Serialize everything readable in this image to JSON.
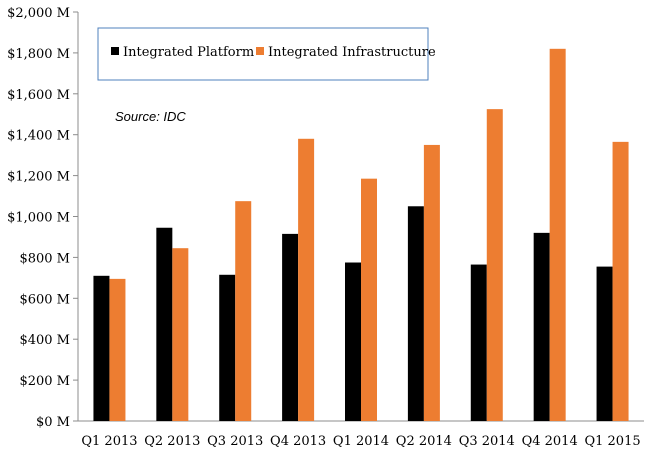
{
  "chart_data": {
    "type": "bar",
    "title": "",
    "xlabel": "",
    "ylabel": "",
    "categories": [
      "Q1 2013",
      "Q2 2013",
      "Q3 2013",
      "Q4 2013",
      "Q1 2014",
      "Q2 2014",
      "Q3 2014",
      "Q4 2014",
      "Q1 2015"
    ],
    "series": [
      {
        "name": "Integrated Platform",
        "color": "#000000",
        "values": [
          710,
          945,
          715,
          915,
          775,
          1050,
          765,
          920,
          755
        ]
      },
      {
        "name": "Integrated Infrastructure",
        "color": "#ED7D31",
        "values": [
          695,
          845,
          1075,
          1380,
          1185,
          1350,
          1525,
          1820,
          1365
        ]
      }
    ],
    "ylim": [
      0,
      2000
    ],
    "yticks": [
      0,
      200,
      400,
      600,
      800,
      1000,
      1200,
      1400,
      1600,
      1800,
      2000
    ],
    "ytick_labels": [
      "$0 M",
      "$200 M",
      "$400 M",
      "$600 M",
      "$800 M",
      "$1,000 M",
      "$1,200 M",
      "$1,400 M",
      "$1,600 M",
      "$1,800 M",
      "$2,000 M"
    ],
    "grid": false,
    "legend_position": "top-left",
    "annotation": "Source: IDC"
  }
}
